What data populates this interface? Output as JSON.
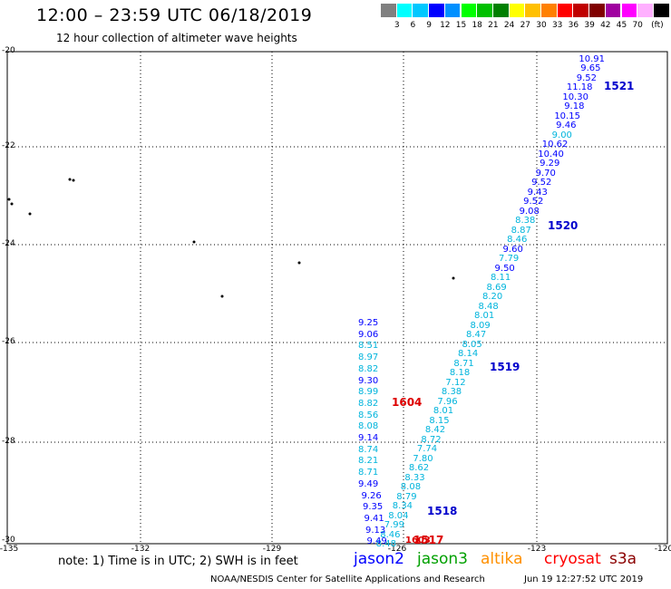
{
  "header": {
    "title": "12:00 – 23:59 UTC 06/18/2019",
    "subtitle": "12 hour collection of altimeter wave heights"
  },
  "colorbar": {
    "colors": [
      "#808080",
      "#00ffff",
      "#00c8ff",
      "#0000ff",
      "#0090ff",
      "#00ff00",
      "#00c000",
      "#008000",
      "#ffff00",
      "#ffc000",
      "#ff8000",
      "#ff0000",
      "#c00000",
      "#800000",
      "#a000a0",
      "#ff00ff",
      "#ffb0ff",
      "#000000"
    ],
    "labels": [
      "3",
      "6",
      "9",
      "12",
      "15",
      "18",
      "21",
      "24",
      "27",
      "30",
      "33",
      "36",
      "39",
      "42",
      "45",
      "70",
      "(ft)"
    ]
  },
  "axes": {
    "lat_labels": [
      "-20",
      "-22",
      "-24",
      "-26",
      "-28",
      "-30"
    ],
    "lon_labels": [
      "-135",
      "-132",
      "-129",
      "-126",
      "-123",
      "-120"
    ]
  },
  "tracks": [
    {
      "id": "1521",
      "color": "#0000cc"
    },
    {
      "id": "1520",
      "color": "#0000cc"
    },
    {
      "id": "1519",
      "color": "#0000cc"
    },
    {
      "id": "1518",
      "color": "#0000cc"
    },
    {
      "id": "1604",
      "color": "#dd0000"
    },
    {
      "id": "1517",
      "color": "#dd0000"
    },
    {
      "id": "1603",
      "color": "#dd0000"
    }
  ],
  "track_diagonal_values": [
    "10.91",
    "9.65",
    "9.52",
    "11.18",
    "10.30",
    "9.18",
    "10.15",
    "9.46",
    "9.00",
    "10.62",
    "10.40",
    "9.29",
    "9.70",
    "9.52",
    "9.43",
    "9.52",
    "9.08",
    "8.38",
    "8.87",
    "8.46",
    "9.60",
    "7.79",
    "9.50",
    "8.11",
    "8.69",
    "8.20",
    "8.48",
    "8.01",
    "8.09",
    "8.47",
    "8.05",
    "8.14",
    "8.71",
    "8.18",
    "7.12",
    "8.38",
    "7.96",
    "8.01",
    "8.15",
    "8.42",
    "8.72",
    "7.74",
    "7.80",
    "8.62",
    "8.33",
    "8.08",
    "8.79",
    "8.34",
    "8.04",
    "7.99",
    "8.46",
    "8.48"
  ],
  "track_diagonal_colors": [
    "b",
    "b",
    "b",
    "b",
    "b",
    "b",
    "b",
    "b",
    "c",
    "b",
    "b",
    "b",
    "b",
    "b",
    "b",
    "b",
    "b",
    "c",
    "c",
    "c",
    "b",
    "c",
    "b",
    "c",
    "c",
    "c",
    "c",
    "c",
    "c",
    "c",
    "c",
    "c",
    "c",
    "c",
    "c",
    "c",
    "c",
    "c",
    "c",
    "c",
    "c",
    "c",
    "c",
    "c",
    "c",
    "c",
    "c",
    "c",
    "c",
    "c",
    "c",
    "c"
  ],
  "track_vertical_values": [
    "9.25",
    "9.06",
    "8.51",
    "8.97",
    "8.82",
    "9.30",
    "8.99",
    "8.82",
    "8.56",
    "8.08",
    "9.14",
    "8.74",
    "8.21",
    "8.71",
    "9.49",
    "9.26",
    "9.35",
    "9.41",
    "9.13",
    "9.49"
  ],
  "track_vertical_colors": [
    "b",
    "b",
    "c",
    "c",
    "c",
    "b",
    "c",
    "c",
    "c",
    "c",
    "b",
    "c",
    "c",
    "c",
    "b",
    "b",
    "b",
    "b",
    "b",
    "b"
  ],
  "satellites": [
    {
      "name": "jason2",
      "color": "#0000ff"
    },
    {
      "name": "jason3",
      "color": "#00a000"
    },
    {
      "name": "altika",
      "color": "#ff9000"
    },
    {
      "name": "cryosat",
      "color": "#ff0000"
    },
    {
      "name": "s3a",
      "color": "#8b0000"
    }
  ],
  "footer": {
    "note": "note: 1) Time is in UTC; 2) SWH is in feet",
    "credit": "NOAA/NESDIS Center for Satellite Applications and Research",
    "timestamp": "Jun 19 12:27:52 UTC 2019"
  }
}
